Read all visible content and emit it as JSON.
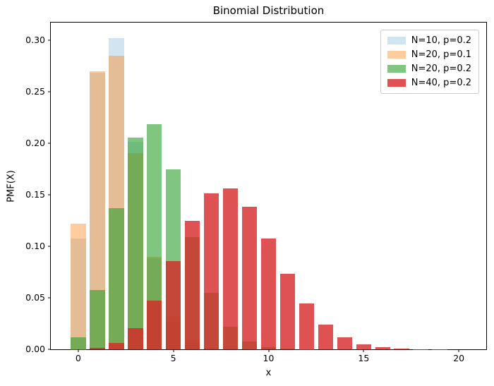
{
  "chart_data": {
    "type": "bar",
    "title": "Binomial Distribution",
    "xlabel": "x",
    "ylabel": "PMF(X)",
    "xlim": [
      -1.44,
      21.44
    ],
    "ylim": [
      0,
      0.3171
    ],
    "bar_width": 0.8,
    "grid": false,
    "legend_position": "upper right",
    "x": [
      0,
      1,
      2,
      3,
      4,
      5,
      6,
      7,
      8,
      9,
      10,
      11,
      12,
      13,
      14,
      15,
      16,
      17,
      18,
      19,
      20
    ],
    "x_ticks": [
      {
        "value": 0,
        "label": "0"
      },
      {
        "value": 5,
        "label": "5"
      },
      {
        "value": 10,
        "label": "10"
      },
      {
        "value": 15,
        "label": "15"
      },
      {
        "value": 20,
        "label": "20"
      }
    ],
    "y_ticks": [
      {
        "value": 0.0,
        "label": "0.00"
      },
      {
        "value": 0.05,
        "label": "0.05"
      },
      {
        "value": 0.1,
        "label": "0.10"
      },
      {
        "value": 0.15,
        "label": "0.15"
      },
      {
        "value": 0.2,
        "label": "0.20"
      },
      {
        "value": 0.25,
        "label": "0.25"
      },
      {
        "value": 0.3,
        "label": "0.30"
      }
    ],
    "series": [
      {
        "name": "N=10, p=0.2",
        "color": "#1f77b4",
        "alpha": 0.2,
        "values": [
          0.10737,
          0.26844,
          0.30199,
          0.20133,
          0.08808,
          0.02642,
          0.00551,
          0.00079,
          7e-05,
          0,
          0,
          0,
          0,
          0,
          0,
          0,
          0,
          0,
          0,
          0,
          0
        ]
      },
      {
        "name": "N=20, p=0.1",
        "color": "#ff7f0e",
        "alpha": 0.4,
        "values": [
          0.12158,
          0.27017,
          0.28518,
          0.19012,
          0.08978,
          0.03192,
          0.00887,
          0.00197,
          0.00036,
          5e-05,
          1e-05,
          0,
          0,
          0,
          0,
          0,
          0,
          0,
          0,
          0,
          0
        ]
      },
      {
        "name": "N=20, p=0.2",
        "color": "#2ca02c",
        "alpha": 0.6,
        "values": [
          0.01153,
          0.05765,
          0.13691,
          0.20536,
          0.2182,
          0.17456,
          0.1091,
          0.05455,
          0.02216,
          0.00739,
          0.00203,
          0.00046,
          9e-05,
          1e-05,
          0,
          0,
          0,
          0,
          0,
          0,
          0
        ]
      },
      {
        "name": "N=40, p=0.2",
        "color": "#d62728",
        "alpha": 0.8,
        "values": [
          0.00013,
          0.00133,
          0.00648,
          0.02052,
          0.04746,
          0.08542,
          0.12457,
          0.15123,
          0.15598,
          0.13865,
          0.10746,
          0.07327,
          0.04427,
          0.02384,
          0.0115,
          0.00498,
          0.00195,
          0.00069,
          0.00022,
          6e-05,
          2e-05
        ]
      }
    ]
  }
}
